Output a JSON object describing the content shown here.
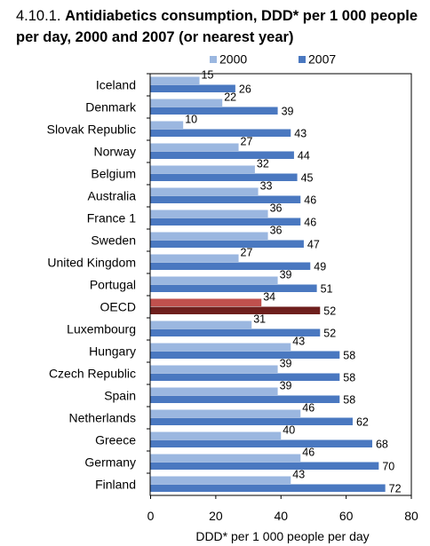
{
  "title": {
    "number": "4.10.1.",
    "text": "Antidiabetics consumption, DDD* per 1 000 people per day, 2000 and 2007 (or nearest year)"
  },
  "colors": {
    "series_2000": "#9bb7e0",
    "series_2007": "#4a78c0",
    "oecd_2000": "#c0504d",
    "oecd_2007": "#6e1f1d",
    "axis": "#000000"
  },
  "chart_data": {
    "type": "bar",
    "orientation": "horizontal",
    "categories": [
      "Iceland",
      "Denmark",
      "Slovak Republic",
      "Norway",
      "Belgium",
      "Australia",
      "France 1",
      "Sweden",
      "United Kingdom",
      "Portugal",
      "OECD",
      "Luxembourg",
      "Hungary",
      "Czech Republic",
      "Spain",
      "Netherlands",
      "Greece",
      "Germany",
      "Finland"
    ],
    "series": [
      {
        "name": "2000",
        "values": [
          15,
          22,
          10,
          27,
          32,
          33,
          36,
          36,
          27,
          39,
          34,
          31,
          43,
          39,
          39,
          46,
          40,
          46,
          43
        ]
      },
      {
        "name": "2007",
        "values": [
          26,
          39,
          43,
          44,
          45,
          46,
          46,
          47,
          49,
          51,
          52,
          52,
          58,
          58,
          58,
          62,
          68,
          70,
          72
        ]
      }
    ],
    "highlight_category": "OECD",
    "xlabel": "DDD* per 1 000 people per day",
    "xlim": [
      0,
      80
    ],
    "xticks": [
      0,
      20,
      40,
      60,
      80
    ],
    "grid": false,
    "legend_position": "top"
  }
}
